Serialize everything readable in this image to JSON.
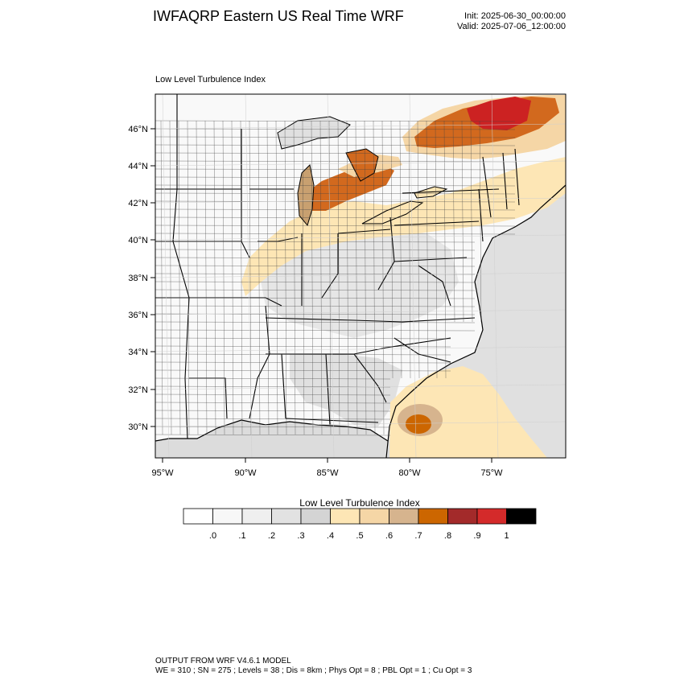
{
  "header": {
    "title": "IWFAQRP Eastern US Real Time WRF",
    "init": "Init: 2025-06-30_00:00:00",
    "valid": "Valid: 2025-07-06_12:00:00"
  },
  "map": {
    "label": "Low Level Turbulence Index",
    "lat_ticks": [
      "46°N",
      "44°N",
      "42°N",
      "40°N",
      "38°N",
      "36°N",
      "34°N",
      "32°N",
      "30°N"
    ],
    "lon_ticks": [
      "95°W",
      "90°W",
      "85°W",
      "80°W",
      "75°W"
    ],
    "land_color": "#ffffff",
    "ocean_color": "#e0e0e0",
    "high_turbulence_colors": [
      "#fde6b5",
      "#f5d6a6",
      "#d2691e",
      "#cc2222"
    ]
  },
  "colorbar": {
    "title": "Low Level Turbulence Index",
    "labels": [
      ".0",
      ".1",
      ".2",
      ".3",
      ".4",
      ".5",
      ".6",
      ".7",
      ".8",
      ".9",
      "1"
    ],
    "colors": [
      "#ffffff",
      "#f7f7f7",
      "#efefef",
      "#e2e2e2",
      "#d4d4d4",
      "#fde6b5",
      "#f5d6a6",
      "#d6b48e",
      "#cc6600",
      "#a32a2a",
      "#d42a2a",
      "#000000"
    ]
  },
  "footer": {
    "line1": "OUTPUT FROM WRF V4.6.1 MODEL",
    "line2": "WE = 310 ; SN = 275 ; Levels = 38 ; Dis = 8km ; Phys Opt = 8 ; PBL Opt = 1 ; Cu Opt = 3"
  }
}
